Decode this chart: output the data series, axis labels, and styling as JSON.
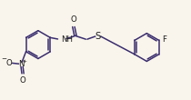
{
  "bg_color": "#faf5ec",
  "bond_color": "#3a2d6e",
  "label_color": "#1a1a1a",
  "font_size": 6.2,
  "line_width": 1.1,
  "figsize": [
    2.1,
    1.1
  ],
  "dpi": 100,
  "xlim": [
    0,
    10.5
  ],
  "ylim": [
    0,
    5.5
  ]
}
